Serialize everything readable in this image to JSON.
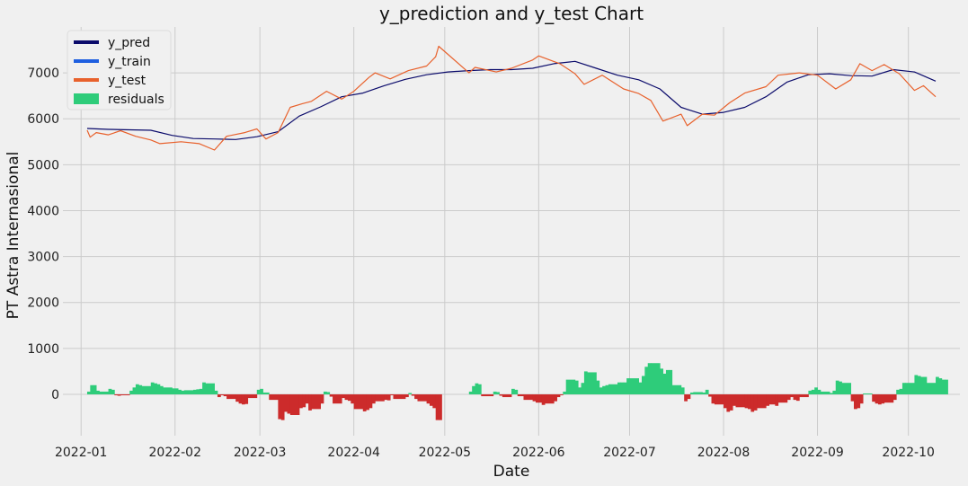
{
  "chart_data": {
    "type": "line",
    "title": "y_prediction and y_test Chart",
    "xlabel": "Date",
    "ylabel": "PT Astra Internasional",
    "xlim": [
      "2021-12-26",
      "2022-10-18"
    ],
    "ylim": [
      -900,
      8000
    ],
    "grid": true,
    "legend_position": "top-left",
    "x_ticks": [
      "2022-01",
      "2022-02",
      "2022-03",
      "2022-04",
      "2022-05",
      "2022-06",
      "2022-07",
      "2022-08",
      "2022-09",
      "2022-10"
    ],
    "y_ticks": [
      0,
      1000,
      2000,
      3000,
      4000,
      5000,
      6000,
      7000
    ],
    "legend": [
      {
        "label": "y_pred",
        "color": "#0b0b6b",
        "kind": "line"
      },
      {
        "label": "y_train",
        "color": "#1f5fe0",
        "kind": "line"
      },
      {
        "label": "y_test",
        "color": "#e8612c",
        "kind": "line"
      },
      {
        "label": "residuals",
        "color": "#2ecc7a",
        "kind": "patch"
      }
    ],
    "colors": {
      "positive_residual": "#2ecc7a",
      "negative_residual": "#cc2b2b"
    },
    "series": [
      {
        "name": "y_pred",
        "color": "#0b0b6b",
        "points": [
          [
            "2022-01-03",
            5790
          ],
          [
            "2022-01-10",
            5770
          ],
          [
            "2022-01-17",
            5760
          ],
          [
            "2022-01-24",
            5750
          ],
          [
            "2022-01-31",
            5640
          ],
          [
            "2022-02-07",
            5570
          ],
          [
            "2022-02-14",
            5560
          ],
          [
            "2022-02-21",
            5550
          ],
          [
            "2022-02-28",
            5610
          ],
          [
            "2022-03-07",
            5720
          ],
          [
            "2022-03-14",
            6060
          ],
          [
            "2022-03-21",
            6260
          ],
          [
            "2022-03-28",
            6480
          ],
          [
            "2022-04-04",
            6560
          ],
          [
            "2022-04-11",
            6720
          ],
          [
            "2022-04-18",
            6860
          ],
          [
            "2022-04-25",
            6960
          ],
          [
            "2022-05-02",
            7020
          ],
          [
            "2022-05-09",
            7050
          ],
          [
            "2022-05-16",
            7070
          ],
          [
            "2022-05-23",
            7070
          ],
          [
            "2022-05-30",
            7100
          ],
          [
            "2022-06-06",
            7200
          ],
          [
            "2022-06-13",
            7250
          ],
          [
            "2022-06-20",
            7100
          ],
          [
            "2022-06-27",
            6950
          ],
          [
            "2022-07-04",
            6850
          ],
          [
            "2022-07-11",
            6650
          ],
          [
            "2022-07-18",
            6250
          ],
          [
            "2022-07-25",
            6100
          ],
          [
            "2022-08-01",
            6140
          ],
          [
            "2022-08-08",
            6250
          ],
          [
            "2022-08-15",
            6480
          ],
          [
            "2022-08-22",
            6800
          ],
          [
            "2022-08-29",
            6960
          ],
          [
            "2022-09-05",
            6980
          ],
          [
            "2022-09-12",
            6940
          ],
          [
            "2022-09-19",
            6930
          ],
          [
            "2022-09-26",
            7070
          ],
          [
            "2022-10-03",
            7020
          ],
          [
            "2022-10-10",
            6820
          ]
        ]
      },
      {
        "name": "y_test",
        "color": "#e8612c",
        "points": [
          [
            "2022-01-03",
            5750
          ],
          [
            "2022-01-04",
            5600
          ],
          [
            "2022-01-06",
            5700
          ],
          [
            "2022-01-10",
            5650
          ],
          [
            "2022-01-14",
            5740
          ],
          [
            "2022-01-19",
            5620
          ],
          [
            "2022-01-24",
            5540
          ],
          [
            "2022-01-27",
            5460
          ],
          [
            "2022-02-03",
            5500
          ],
          [
            "2022-02-09",
            5460
          ],
          [
            "2022-02-14",
            5320
          ],
          [
            "2022-02-18",
            5620
          ],
          [
            "2022-02-24",
            5700
          ],
          [
            "2022-02-28",
            5780
          ],
          [
            "2022-03-03",
            5560
          ],
          [
            "2022-03-07",
            5700
          ],
          [
            "2022-03-11",
            6250
          ],
          [
            "2022-03-15",
            6330
          ],
          [
            "2022-03-18",
            6380
          ],
          [
            "2022-03-23",
            6600
          ],
          [
            "2022-03-28",
            6430
          ],
          [
            "2022-04-01",
            6600
          ],
          [
            "2022-04-06",
            6900
          ],
          [
            "2022-04-08",
            7000
          ],
          [
            "2022-04-13",
            6870
          ],
          [
            "2022-04-19",
            7050
          ],
          [
            "2022-04-25",
            7150
          ],
          [
            "2022-04-28",
            7350
          ],
          [
            "2022-04-29",
            7580
          ],
          [
            "2022-05-09",
            7000
          ],
          [
            "2022-05-11",
            7120
          ],
          [
            "2022-05-18",
            7020
          ],
          [
            "2022-05-23",
            7100
          ],
          [
            "2022-05-30",
            7280
          ],
          [
            "2022-06-01",
            7370
          ],
          [
            "2022-06-08",
            7200
          ],
          [
            "2022-06-13",
            6980
          ],
          [
            "2022-06-16",
            6750
          ],
          [
            "2022-06-22",
            6950
          ],
          [
            "2022-06-29",
            6650
          ],
          [
            "2022-07-04",
            6550
          ],
          [
            "2022-07-08",
            6400
          ],
          [
            "2022-07-12",
            5950
          ],
          [
            "2022-07-18",
            6100
          ],
          [
            "2022-07-20",
            5850
          ],
          [
            "2022-07-25",
            6100
          ],
          [
            "2022-07-29",
            6080
          ],
          [
            "2022-08-03",
            6350
          ],
          [
            "2022-08-08",
            6560
          ],
          [
            "2022-08-15",
            6700
          ],
          [
            "2022-08-19",
            6950
          ],
          [
            "2022-08-26",
            7000
          ],
          [
            "2022-09-01",
            6950
          ],
          [
            "2022-09-07",
            6650
          ],
          [
            "2022-09-12",
            6850
          ],
          [
            "2022-09-15",
            7200
          ],
          [
            "2022-09-19",
            7050
          ],
          [
            "2022-09-23",
            7180
          ],
          [
            "2022-09-28",
            6980
          ],
          [
            "2022-10-03",
            6620
          ],
          [
            "2022-10-06",
            6720
          ],
          [
            "2022-10-10",
            6480
          ]
        ]
      }
    ],
    "residuals": [
      [
        "2022-01-03",
        60
      ],
      [
        "2022-01-04",
        200
      ],
      [
        "2022-01-05",
        200
      ],
      [
        "2022-01-06",
        80
      ],
      [
        "2022-01-07",
        60
      ],
      [
        "2022-01-10",
        120
      ],
      [
        "2022-01-11",
        100
      ],
      [
        "2022-01-12",
        -20
      ],
      [
        "2022-01-13",
        -30
      ],
      [
        "2022-01-14",
        -20
      ],
      [
        "2022-01-17",
        80
      ],
      [
        "2022-01-18",
        150
      ],
      [
        "2022-01-19",
        220
      ],
      [
        "2022-01-20",
        200
      ],
      [
        "2022-01-21",
        180
      ],
      [
        "2022-01-24",
        260
      ],
      [
        "2022-01-25",
        240
      ],
      [
        "2022-01-26",
        220
      ],
      [
        "2022-01-27",
        180
      ],
      [
        "2022-01-28",
        150
      ],
      [
        "2022-01-31",
        130
      ],
      [
        "2022-02-02",
        100
      ],
      [
        "2022-02-03",
        80
      ],
      [
        "2022-02-04",
        90
      ],
      [
        "2022-02-07",
        100
      ],
      [
        "2022-02-08",
        110
      ],
      [
        "2022-02-09",
        120
      ],
      [
        "2022-02-10",
        260
      ],
      [
        "2022-02-11",
        240
      ],
      [
        "2022-02-14",
        80
      ],
      [
        "2022-02-15",
        -60
      ],
      [
        "2022-02-16",
        -20
      ],
      [
        "2022-02-17",
        -40
      ],
      [
        "2022-02-18",
        -100
      ],
      [
        "2022-02-21",
        -160
      ],
      [
        "2022-02-22",
        -200
      ],
      [
        "2022-02-23",
        -220
      ],
      [
        "2022-02-24",
        -210
      ],
      [
        "2022-02-25",
        -80
      ],
      [
        "2022-02-28",
        100
      ],
      [
        "2022-03-01",
        120
      ],
      [
        "2022-03-02",
        40
      ],
      [
        "2022-03-04",
        -120
      ],
      [
        "2022-03-07",
        -540
      ],
      [
        "2022-03-08",
        -560
      ],
      [
        "2022-03-09",
        -380
      ],
      [
        "2022-03-10",
        -420
      ],
      [
        "2022-03-11",
        -450
      ],
      [
        "2022-03-14",
        -300
      ],
      [
        "2022-03-15",
        -280
      ],
      [
        "2022-03-16",
        -200
      ],
      [
        "2022-03-17",
        -350
      ],
      [
        "2022-03-18",
        -320
      ],
      [
        "2022-03-21",
        -200
      ],
      [
        "2022-03-22",
        60
      ],
      [
        "2022-03-23",
        50
      ],
      [
        "2022-03-24",
        -50
      ],
      [
        "2022-03-25",
        -200
      ],
      [
        "2022-03-28",
        -80
      ],
      [
        "2022-03-29",
        -120
      ],
      [
        "2022-03-30",
        -140
      ],
      [
        "2022-03-31",
        -200
      ],
      [
        "2022-04-01",
        -320
      ],
      [
        "2022-04-04",
        -370
      ],
      [
        "2022-04-05",
        -340
      ],
      [
        "2022-04-06",
        -300
      ],
      [
        "2022-04-07",
        -200
      ],
      [
        "2022-04-08",
        -150
      ],
      [
        "2022-04-11",
        -120
      ],
      [
        "2022-04-12",
        -130
      ],
      [
        "2022-04-13",
        -20
      ],
      [
        "2022-04-14",
        -100
      ],
      [
        "2022-04-18",
        -60
      ],
      [
        "2022-04-19",
        30
      ],
      [
        "2022-04-20",
        -30
      ],
      [
        "2022-04-21",
        -100
      ],
      [
        "2022-04-22",
        -150
      ],
      [
        "2022-04-25",
        -200
      ],
      [
        "2022-04-26",
        -250
      ],
      [
        "2022-04-27",
        -300
      ],
      [
        "2022-04-28",
        -560
      ],
      [
        "2022-04-29",
        -560
      ],
      [
        "2022-05-09",
        60
      ],
      [
        "2022-05-10",
        180
      ],
      [
        "2022-05-11",
        240
      ],
      [
        "2022-05-12",
        220
      ],
      [
        "2022-05-13",
        -40
      ],
      [
        "2022-05-17",
        60
      ],
      [
        "2022-05-18",
        50
      ],
      [
        "2022-05-19",
        -30
      ],
      [
        "2022-05-20",
        -60
      ],
      [
        "2022-05-23",
        120
      ],
      [
        "2022-05-24",
        100
      ],
      [
        "2022-05-25",
        -40
      ],
      [
        "2022-05-27",
        -120
      ],
      [
        "2022-05-30",
        -150
      ],
      [
        "2022-05-31",
        -180
      ],
      [
        "2022-06-02",
        -230
      ],
      [
        "2022-06-03",
        -200
      ],
      [
        "2022-06-06",
        -150
      ],
      [
        "2022-06-07",
        -60
      ],
      [
        "2022-06-08",
        -20
      ],
      [
        "2022-06-09",
        60
      ],
      [
        "2022-06-10",
        320
      ],
      [
        "2022-06-13",
        300
      ],
      [
        "2022-06-14",
        150
      ],
      [
        "2022-06-15",
        250
      ],
      [
        "2022-06-16",
        500
      ],
      [
        "2022-06-17",
        480
      ],
      [
        "2022-06-20",
        300
      ],
      [
        "2022-06-21",
        150
      ],
      [
        "2022-06-22",
        180
      ],
      [
        "2022-06-23",
        200
      ],
      [
        "2022-06-24",
        220
      ],
      [
        "2022-06-27",
        260
      ],
      [
        "2022-06-28",
        260
      ],
      [
        "2022-06-29",
        260
      ],
      [
        "2022-06-30",
        350
      ],
      [
        "2022-07-01",
        350
      ],
      [
        "2022-07-04",
        260
      ],
      [
        "2022-07-05",
        400
      ],
      [
        "2022-07-06",
        600
      ],
      [
        "2022-07-07",
        680
      ],
      [
        "2022-07-08",
        680
      ],
      [
        "2022-07-11",
        560
      ],
      [
        "2022-07-12",
        450
      ],
      [
        "2022-07-13",
        530
      ],
      [
        "2022-07-14",
        530
      ],
      [
        "2022-07-15",
        200
      ],
      [
        "2022-07-18",
        150
      ],
      [
        "2022-07-19",
        -150
      ],
      [
        "2022-07-20",
        -100
      ],
      [
        "2022-07-21",
        40
      ],
      [
        "2022-07-22",
        50
      ],
      [
        "2022-07-25",
        40
      ],
      [
        "2022-07-26",
        100
      ],
      [
        "2022-07-27",
        -50
      ],
      [
        "2022-07-28",
        -200
      ],
      [
        "2022-07-29",
        -220
      ],
      [
        "2022-08-01",
        -300
      ],
      [
        "2022-08-02",
        -380
      ],
      [
        "2022-08-03",
        -350
      ],
      [
        "2022-08-04",
        -250
      ],
      [
        "2022-08-05",
        -280
      ],
      [
        "2022-08-08",
        -300
      ],
      [
        "2022-08-09",
        -320
      ],
      [
        "2022-08-10",
        -380
      ],
      [
        "2022-08-11",
        -350
      ],
      [
        "2022-08-12",
        -300
      ],
      [
        "2022-08-15",
        -250
      ],
      [
        "2022-08-16",
        -220
      ],
      [
        "2022-08-18",
        -250
      ],
      [
        "2022-08-19",
        -180
      ],
      [
        "2022-08-22",
        -120
      ],
      [
        "2022-08-23",
        -60
      ],
      [
        "2022-08-24",
        -120
      ],
      [
        "2022-08-25",
        -140
      ],
      [
        "2022-08-26",
        -60
      ],
      [
        "2022-08-29",
        80
      ],
      [
        "2022-08-30",
        100
      ],
      [
        "2022-08-31",
        150
      ],
      [
        "2022-09-01",
        100
      ],
      [
        "2022-09-02",
        60
      ],
      [
        "2022-09-05",
        30
      ],
      [
        "2022-09-06",
        80
      ],
      [
        "2022-09-07",
        300
      ],
      [
        "2022-09-08",
        280
      ],
      [
        "2022-09-09",
        250
      ],
      [
        "2022-09-12",
        -150
      ],
      [
        "2022-09-13",
        -320
      ],
      [
        "2022-09-14",
        -300
      ],
      [
        "2022-09-15",
        -200
      ],
      [
        "2022-09-16",
        20
      ],
      [
        "2022-09-19",
        -160
      ],
      [
        "2022-09-20",
        -200
      ],
      [
        "2022-09-21",
        -220
      ],
      [
        "2022-09-22",
        -200
      ],
      [
        "2022-09-23",
        -180
      ],
      [
        "2022-09-26",
        -120
      ],
      [
        "2022-09-27",
        100
      ],
      [
        "2022-09-28",
        120
      ],
      [
        "2022-09-29",
        250
      ],
      [
        "2022-09-30",
        250
      ],
      [
        "2022-10-03",
        420
      ],
      [
        "2022-10-04",
        400
      ],
      [
        "2022-10-05",
        380
      ],
      [
        "2022-10-06",
        380
      ],
      [
        "2022-10-07",
        250
      ],
      [
        "2022-10-10",
        380
      ],
      [
        "2022-10-11",
        350
      ],
      [
        "2022-10-12",
        320
      ],
      [
        "2022-10-13",
        320
      ]
    ]
  }
}
